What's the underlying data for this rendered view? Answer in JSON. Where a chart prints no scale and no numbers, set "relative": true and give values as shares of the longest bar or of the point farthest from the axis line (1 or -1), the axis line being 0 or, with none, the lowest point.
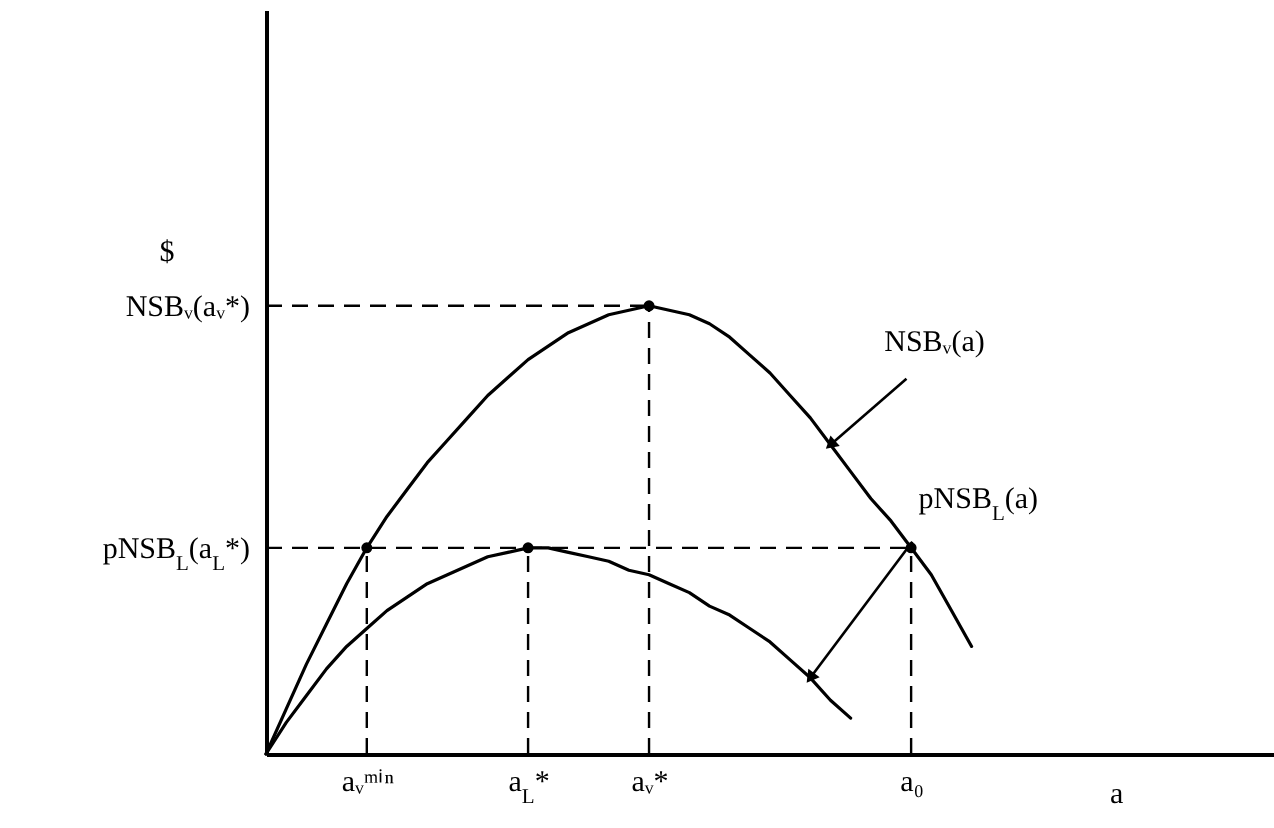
{
  "chart_data": {
    "type": "line",
    "relative": true,
    "ylabel": "$",
    "xlabel": "a",
    "categories": [
      null,
      null,
      null,
      null,
      null,
      "aᵥᵐⁱⁿ",
      null,
      null,
      null,
      null,
      null,
      null,
      null,
      "a$_{L}$*",
      null,
      null,
      null,
      null,
      null,
      "aᵥ*",
      null,
      null,
      null,
      null,
      null,
      null,
      null,
      null,
      null,
      null,
      null,
      null,
      "a₀",
      null,
      null,
      null,
      null,
      null,
      null,
      null,
      null,
      null,
      null,
      null,
      null,
      null,
      null,
      null,
      null,
      null,
      null
    ],
    "series": [
      {
        "name": "NSBᵥ(a)",
        "color": "#000000",
        "values": [
          0,
          0.1,
          0.2,
          0.29,
          0.38,
          0.46,
          0.53,
          0.59,
          0.65,
          0.7,
          0.75,
          0.8,
          0.84,
          0.88,
          0.91,
          0.94,
          0.96,
          0.98,
          0.99,
          1,
          0.99,
          0.98,
          0.96,
          0.93,
          0.89,
          0.85,
          0.8,
          0.75,
          0.69,
          0.63,
          0.57,
          0.52,
          0.46,
          0.4,
          0.32,
          0.24,
          null,
          null,
          null,
          null,
          null,
          null,
          null,
          null,
          null,
          null,
          null,
          null,
          null,
          null,
          null
        ]
      },
      {
        "name": "pNSB$_{L}$(a)",
        "color": "#000000",
        "values": [
          0,
          0.07,
          0.13,
          0.19,
          0.24,
          0.28,
          0.32,
          0.35,
          0.38,
          0.4,
          0.42,
          0.44,
          0.45,
          0.46,
          0.46,
          0.45,
          0.44,
          0.43,
          0.41,
          0.4,
          0.38,
          0.36,
          0.33,
          0.31,
          0.28,
          0.25,
          0.21,
          0.17,
          0.12,
          0.08,
          null,
          null,
          null,
          null,
          null,
          null,
          null,
          null,
          null,
          null,
          null,
          null,
          null,
          null,
          null,
          null,
          null,
          null,
          null,
          null,
          null
        ]
      },
      {
        "type": "scatter",
        "color": "#000000",
        "marker": "circle",
        "x": [
          "aᵥᵐⁱⁿ",
          "a$_{L}$*",
          "aᵥ*",
          "a₀"
        ],
        "values": [
          0.46,
          0.46,
          1,
          0.46
        ]
      }
    ],
    "annotations": [
      {
        "text": "NSBᵥ(aᵥ*)",
        "x": "aᵥ*",
        "y": 1
      },
      {
        "text": "pNSB$_{L}$(a$_{L}$*)",
        "x": "a₀",
        "y": 0.46
      }
    ]
  }
}
